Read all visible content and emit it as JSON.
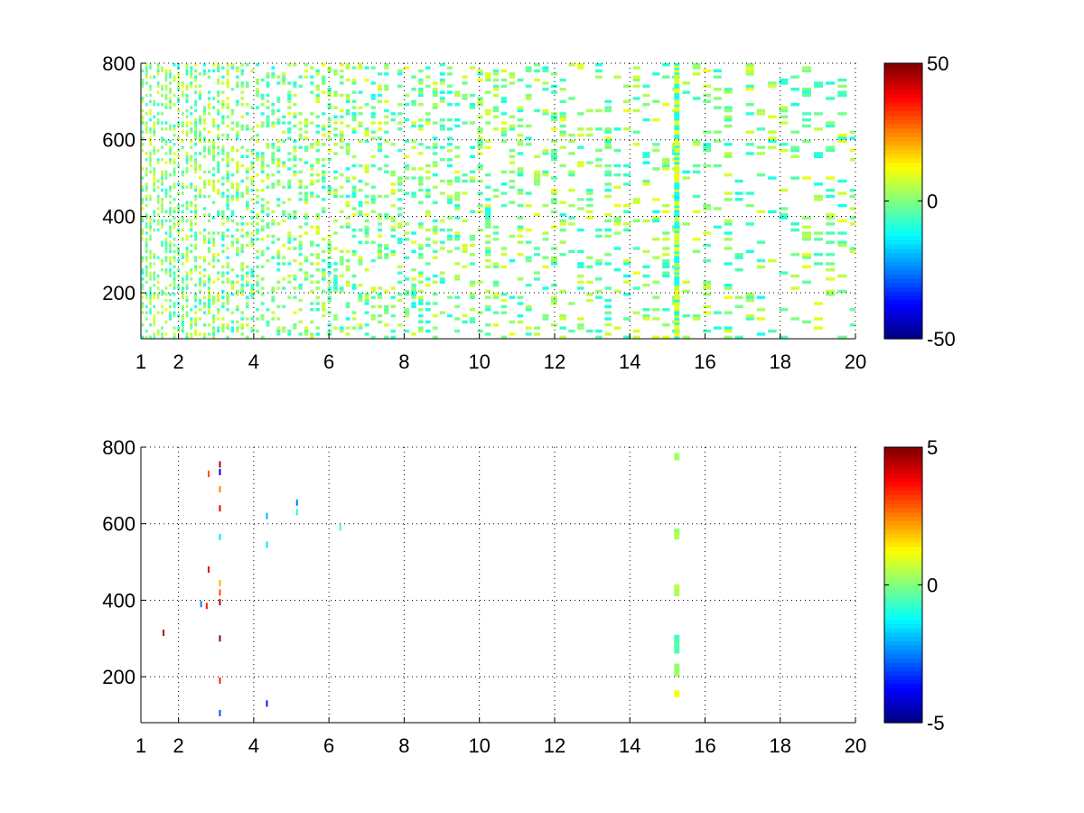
{
  "chart_data": [
    {
      "type": "heatmap",
      "title": "",
      "xlabel": "",
      "ylabel": "",
      "xlim": [
        1,
        20
      ],
      "ylim": [
        80,
        800
      ],
      "xticks": [
        1,
        2,
        4,
        6,
        8,
        10,
        12,
        14,
        16,
        18,
        20
      ],
      "yticks": [
        200,
        400,
        600,
        800
      ],
      "grid": true,
      "colormap": "jet",
      "colorbar": {
        "range": [
          -50,
          50
        ],
        "ticks": [
          -50,
          0,
          50
        ],
        "position": "right"
      },
      "notable_features": [
        {
          "x": 15.25,
          "description": "strong vertical band of nonzero values spanning full y range"
        }
      ],
      "value_range_observed": [
        -15,
        15
      ]
    },
    {
      "type": "heatmap",
      "title": "",
      "xlabel": "",
      "ylabel": "",
      "xlim": [
        1,
        20
      ],
      "ylim": [
        80,
        800
      ],
      "xticks": [
        1,
        2,
        4,
        6,
        8,
        10,
        12,
        14,
        16,
        18,
        20
      ],
      "yticks": [
        200,
        400,
        600,
        800
      ],
      "grid": true,
      "colormap": "jet",
      "colorbar": {
        "range": [
          -5,
          5
        ],
        "ticks": [
          -5,
          0,
          5
        ],
        "position": "right"
      },
      "points": [
        {
          "x": 15.25,
          "y": 775,
          "v": 0.3
        },
        {
          "x": 15.25,
          "y": 578,
          "v": 0.2
        },
        {
          "x": 15.25,
          "y": 568,
          "v": 0.5
        },
        {
          "x": 15.25,
          "y": 432,
          "v": 0.6
        },
        {
          "x": 15.25,
          "y": 420,
          "v": 0.4
        },
        {
          "x": 15.25,
          "y": 300,
          "v": -0.6
        },
        {
          "x": 15.25,
          "y": 285,
          "v": -0.4
        },
        {
          "x": 15.25,
          "y": 270,
          "v": -0.5
        },
        {
          "x": 15.25,
          "y": 225,
          "v": 0.2
        },
        {
          "x": 15.25,
          "y": 210,
          "v": 0.3
        },
        {
          "x": 15.25,
          "y": 155,
          "v": 1.2
        },
        {
          "x": 3.1,
          "y": 755,
          "v": 4.5
        },
        {
          "x": 3.1,
          "y": 735,
          "v": -4.2
        },
        {
          "x": 3.1,
          "y": 690,
          "v": 2.5
        },
        {
          "x": 3.1,
          "y": 640,
          "v": 4.0
        },
        {
          "x": 3.1,
          "y": 565,
          "v": -1.5
        },
        {
          "x": 3.1,
          "y": 445,
          "v": 2.0
        },
        {
          "x": 3.1,
          "y": 420,
          "v": 3.0
        },
        {
          "x": 3.1,
          "y": 395,
          "v": 4.6
        },
        {
          "x": 3.1,
          "y": 300,
          "v": 4.8
        },
        {
          "x": 3.1,
          "y": 190,
          "v": 3.5
        },
        {
          "x": 3.1,
          "y": 105,
          "v": -3.0
        },
        {
          "x": 2.8,
          "y": 730,
          "v": 3.0
        },
        {
          "x": 2.8,
          "y": 480,
          "v": 4.0
        },
        {
          "x": 2.75,
          "y": 385,
          "v": 3.5
        },
        {
          "x": 2.6,
          "y": 390,
          "v": -2.5
        },
        {
          "x": 1.6,
          "y": 315,
          "v": 4.5
        },
        {
          "x": 4.35,
          "y": 620,
          "v": -2.0
        },
        {
          "x": 4.35,
          "y": 545,
          "v": -1.5
        },
        {
          "x": 4.35,
          "y": 130,
          "v": -3.5
        },
        {
          "x": 5.15,
          "y": 655,
          "v": -2.5
        },
        {
          "x": 5.15,
          "y": 630,
          "v": -1.0
        },
        {
          "x": 6.3,
          "y": 590,
          "v": -0.8
        }
      ]
    }
  ]
}
